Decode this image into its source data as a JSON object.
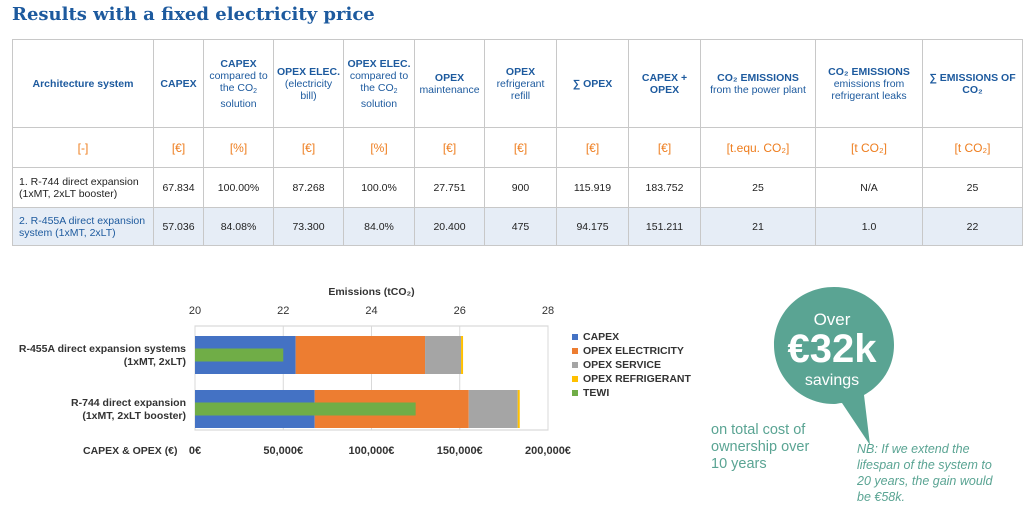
{
  "title": "Results with a fixed electricity price",
  "table": {
    "headers": [
      {
        "bold": "Architecture system",
        "sub_a": "",
        "sub_co2": false,
        "sub_b": ""
      },
      {
        "bold": "CAPEX",
        "sub_a": "",
        "sub_co2": false,
        "sub_b": ""
      },
      {
        "bold": "CAPEX",
        "sub_a": "compared to the CO",
        "sub_co2": true,
        "sub_b": " solution"
      },
      {
        "bold": "OPEX ELEC.",
        "sub_a": "(electricity bill)",
        "sub_co2": false,
        "sub_b": ""
      },
      {
        "bold": "OPEX ELEC.",
        "sub_a": "compared to the CO",
        "sub_co2": true,
        "sub_b": " solution"
      },
      {
        "bold": "OPEX",
        "sub_a": "maintenance",
        "sub_co2": false,
        "sub_b": ""
      },
      {
        "bold": "OPEX",
        "sub_a": "refrigerant refill",
        "sub_co2": false,
        "sub_b": ""
      },
      {
        "bold": "∑ OPEX",
        "sub_a": "",
        "sub_co2": false,
        "sub_b": ""
      },
      {
        "bold": "CAPEX + OPEX",
        "sub_a": "",
        "sub_co2": false,
        "sub_b": ""
      },
      {
        "bold": "CO₂ EMISSIONS",
        "sub_a": "from the power plant",
        "sub_co2": false,
        "sub_b": ""
      },
      {
        "bold": "CO₂ EMISSIONS",
        "sub_a": "emissions from refrigerant leaks",
        "sub_co2": false,
        "sub_b": ""
      },
      {
        "bold": "∑ EMISSIONS OF CO₂",
        "sub_a": "",
        "sub_co2": false,
        "sub_b": ""
      }
    ],
    "units": [
      "[-]",
      "[€]",
      "[%]",
      "[€]",
      "[%]",
      "[€]",
      "[€]",
      "[€]",
      "[€]",
      "[t.equ. CO₂]",
      "[t CO₂]",
      "[t CO₂]"
    ],
    "rows": [
      [
        "1. R-744 direct expansion (1xMT, 2xLT booster)",
        "67.834",
        "100.00%",
        "87.268",
        "100.0%",
        "27.751",
        "900",
        "115.919",
        "183.752",
        "25",
        "N/A",
        "25"
      ],
      [
        "2. R-455A direct expansion system (1xMT, 2xLT)",
        "57.036",
        "84.08%",
        "73.300",
        "84.0%",
        "20.400",
        "475",
        "94.175",
        "151.211",
        "21",
        "1.0",
        "22"
      ]
    ]
  },
  "chart_data": {
    "type": "bar",
    "orientation": "horizontal",
    "stacked": true,
    "categories": [
      "R-455A direct expansion systems (1xMT, 2xLT)",
      "R-744 direct expansion (1xMT, 2xLT booster)"
    ],
    "series": [
      {
        "name": "CAPEX",
        "color": "#4472c4",
        "values": [
          57036,
          67834
        ]
      },
      {
        "name": "OPEX ELECTRICITY",
        "color": "#ed7d31",
        "values": [
          73300,
          87268
        ]
      },
      {
        "name": "OPEX SERVICE",
        "color": "#a5a5a5",
        "values": [
          20400,
          27751
        ]
      },
      {
        "name": "OPEX REFRIGERANT",
        "color": "#ffc000",
        "values": [
          475,
          900
        ]
      }
    ],
    "tewi": {
      "name": "TEWI",
      "color": "#70ad47",
      "values": [
        22,
        25
      ]
    },
    "top_axis": {
      "label": "Emissions (tCO₂)",
      "range": [
        20,
        28
      ],
      "ticks": [
        "20",
        "22",
        "24",
        "26",
        "28"
      ]
    },
    "bottom_axis": {
      "label": "CAPEX & OPEX (€)",
      "range": [
        0,
        200000
      ],
      "ticks": [
        "0€",
        "50,000€",
        "100,000€",
        "150,000€",
        "200,000€"
      ]
    },
    "grid": true,
    "legend_position": "right"
  },
  "savings": {
    "over": "Over",
    "amount": "€32k",
    "label": "savings",
    "tco_note": "on total cost of ownership over 10 years",
    "nb_note": "NB: If we extend the lifespan of the system to 20 years, the gain would be €58k.",
    "bubble_color": "#5aa493"
  }
}
